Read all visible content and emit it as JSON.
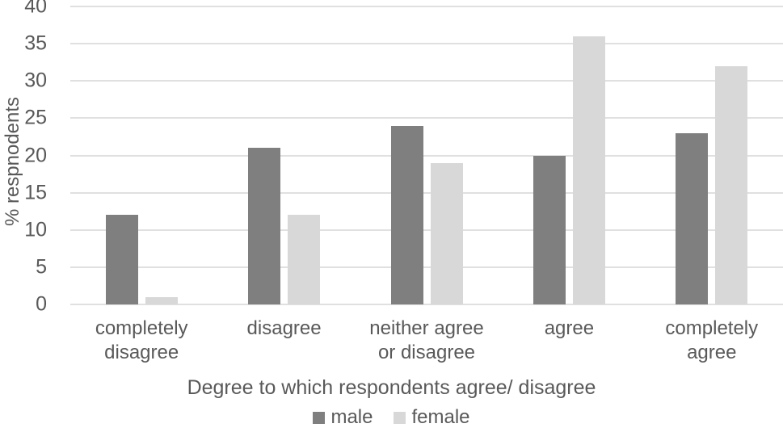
{
  "chart_data": {
    "type": "bar",
    "title": "",
    "categories": [
      "completely disagree",
      "disagree",
      "neither agree or disagree",
      "agree",
      "completely agree"
    ],
    "series": [
      {
        "name": "male",
        "color": "#7f7f7f",
        "values": [
          12,
          21,
          24,
          20,
          23
        ]
      },
      {
        "name": "female",
        "color": "#d8d8d8",
        "values": [
          1,
          12,
          19,
          36,
          32
        ]
      }
    ],
    "xlabel": "Degree to which respondents agree/ disagree",
    "ylabel": "% respnodents",
    "ylim": [
      0,
      40
    ],
    "yticks": [
      0,
      5,
      10,
      15,
      20,
      25,
      30,
      35,
      40
    ],
    "grid": true,
    "legend_position": "bottom",
    "colors": {
      "text": "#595959",
      "gridline": "#e0e0e0",
      "background": "#ffffff"
    }
  }
}
